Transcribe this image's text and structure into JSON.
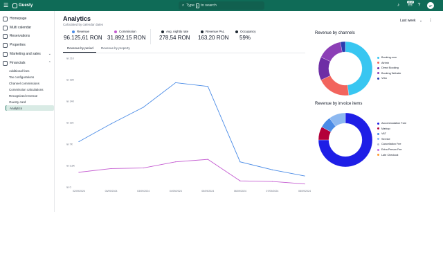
{
  "topbar": {
    "logo_text": "Guesty",
    "search_prefix": "Type",
    "search_key": "/",
    "search_suffix": "to search",
    "new_badge": "NEW",
    "avatar_initials": "VF"
  },
  "sidebar": {
    "items": [
      {
        "label": "Homepage"
      },
      {
        "label": "Multi calendar"
      },
      {
        "label": "Reservations"
      },
      {
        "label": "Properties"
      },
      {
        "label": "Marketing and sales"
      },
      {
        "label": "Financials"
      }
    ],
    "sub_items": [
      {
        "label": "Additional fees"
      },
      {
        "label": "Tax configurations"
      },
      {
        "label": "Channel commissions"
      },
      {
        "label": "Commission calculations"
      },
      {
        "label": "Recognized revenue"
      },
      {
        "label": "Guesty card"
      },
      {
        "label": "Analytics"
      }
    ]
  },
  "header": {
    "title": "Analytics",
    "subtitle": "Calculated by calendar dates",
    "period": "Last week"
  },
  "metrics": [
    {
      "label": "Revenue",
      "value": "96.125,61 RON",
      "color": "#4a8be6"
    },
    {
      "label": "Commission",
      "value": "31.892,15 RON",
      "color": "#c45bd1"
    },
    {
      "label": "Avg. nightly rate",
      "value": "278,54 RON",
      "color": "#1f2933"
    },
    {
      "label": "Revenue PAL",
      "value": "163,20 RON",
      "color": "#1f2933"
    },
    {
      "label": "Occupancy",
      "value": "59%",
      "color": "#1f2933"
    }
  ],
  "tabs": [
    {
      "label": "Revenue by period"
    },
    {
      "label": "Revenue by property"
    }
  ],
  "chart_data": [
    {
      "type": "line",
      "title": "",
      "xlabel": "",
      "ylabel": "",
      "y_ticks": [
        "lei 21K",
        "lei 18K",
        "lei 14K",
        "lei 11K",
        "lei 7K",
        "lei 3,5K",
        "lei 0"
      ],
      "ylim": [
        0,
        21000
      ],
      "x": [
        "02/09/2024",
        "03/09/2024",
        "03/09/2024",
        "04/09/2024",
        "05/09/2024",
        "06/09/2024",
        "07/09/2024",
        "08/09/2024"
      ],
      "grid": false,
      "series": [
        {
          "name": "Revenue",
          "color": "#4a8be6",
          "values": [
            7400,
            10300,
            13000,
            17000,
            16400,
            4100,
            2800,
            1800
          ]
        },
        {
          "name": "Commission",
          "color": "#c45bd1",
          "values": [
            2400,
            3000,
            3100,
            4100,
            4500,
            1000,
            900,
            500
          ]
        }
      ]
    },
    {
      "type": "pie",
      "title": "Revenue by channels",
      "legend_placement": "right",
      "categories": [
        "Booking.com",
        "Airbnb",
        "Direct Booking",
        "Booking Website",
        "Vrbo"
      ],
      "values": [
        48,
        20,
        14,
        15,
        3
      ],
      "colors": [
        "#38c6f1",
        "#f2645d",
        "#6e2ea5",
        "#8c3fb6",
        "#2a3db0"
      ]
    },
    {
      "type": "pie",
      "title": "Revenue by invoice items",
      "legend_placement": "right",
      "categories": [
        "Accommodation Fare",
        "Markup",
        "VAT",
        "Service",
        "Cancellation Fee",
        "Extra Person Fee",
        "Late Checkout"
      ],
      "values": [
        75,
        8,
        7,
        10,
        0,
        0,
        0
      ],
      "colors": [
        "#1e1ee6",
        "#b3003a",
        "#4a8be6",
        "#8cb8f0",
        "#b7bed0",
        "#c46fe0",
        "#ff9a2e"
      ]
    }
  ]
}
